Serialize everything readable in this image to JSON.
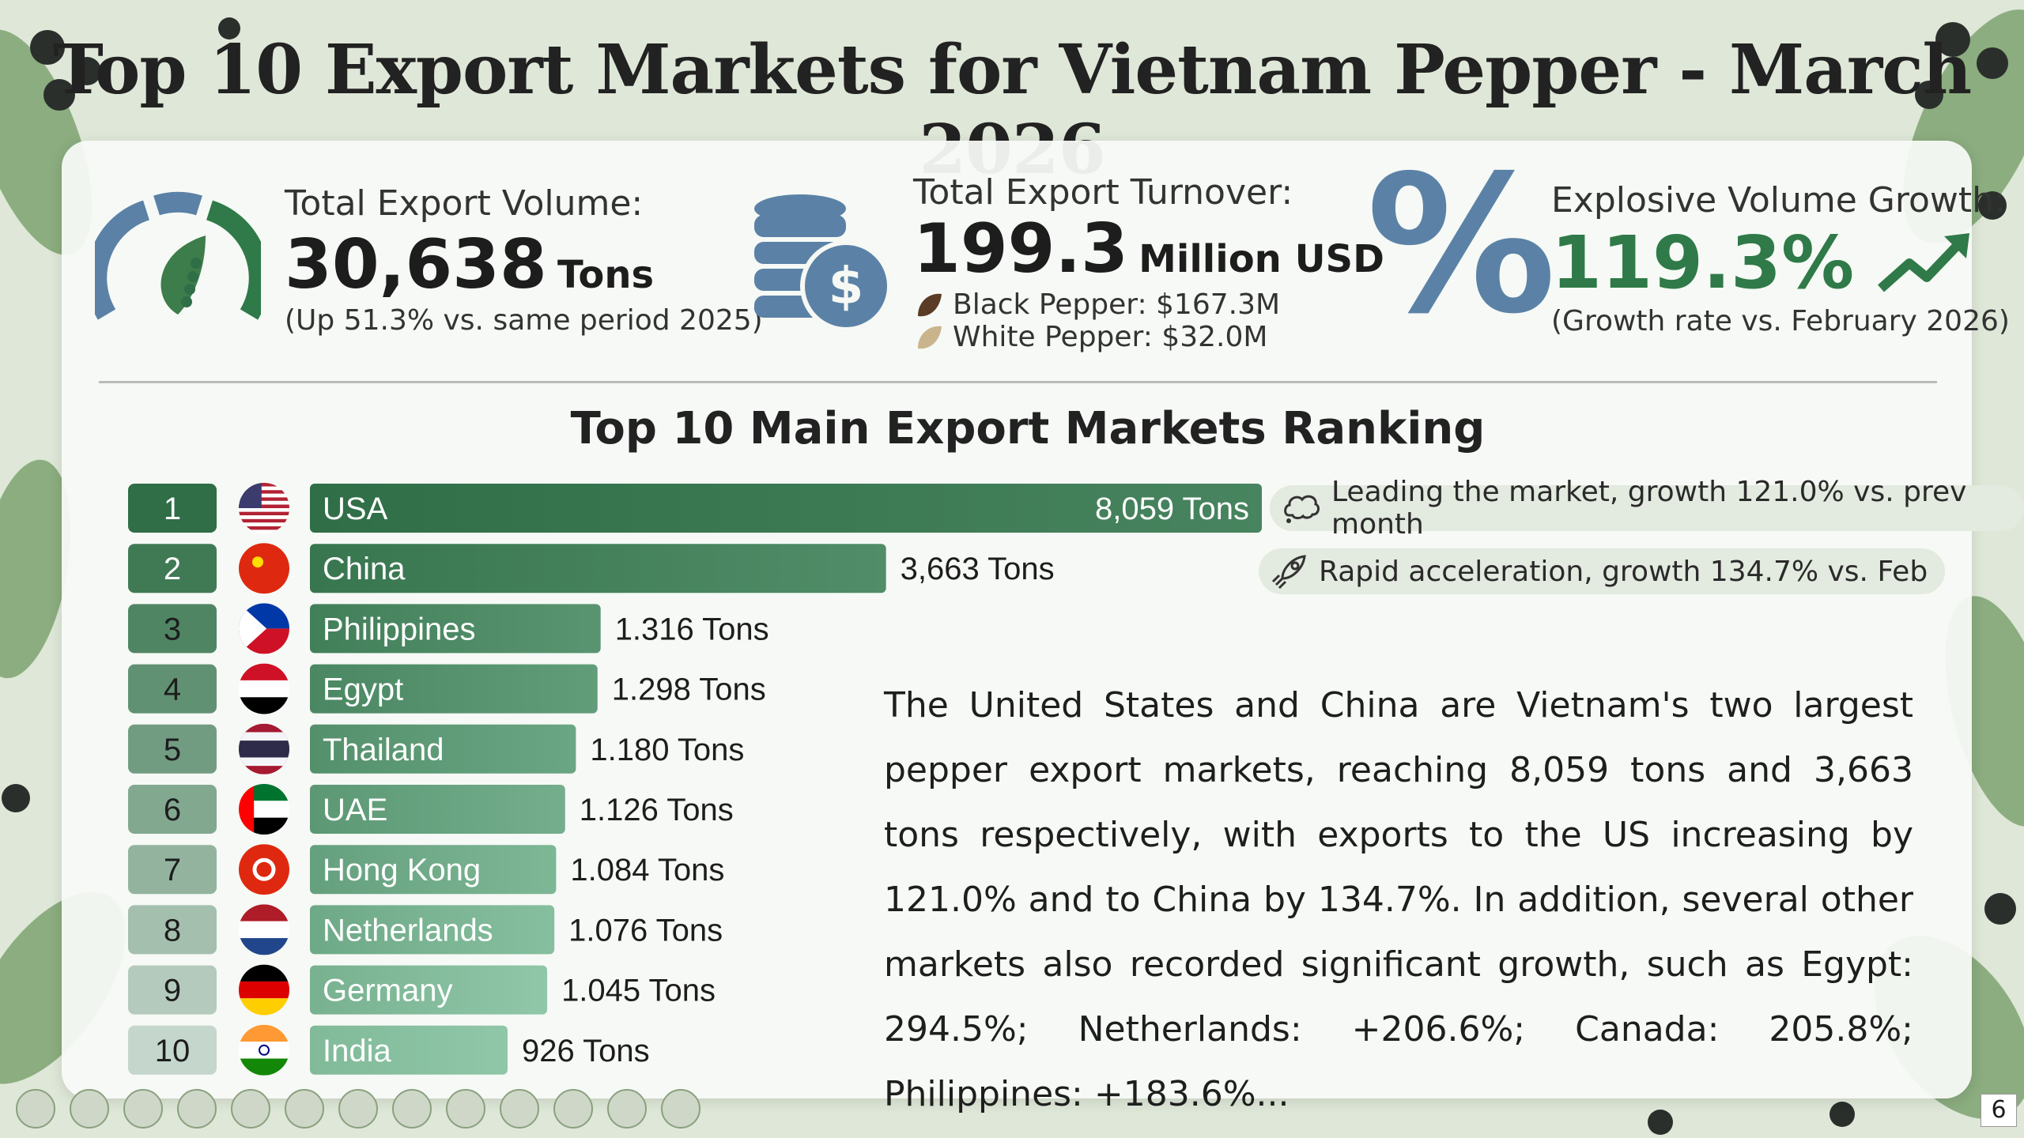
{
  "title": "Top 10 Export Markets for Vietnam Pepper - March 2026",
  "kpis": {
    "volume": {
      "label": "Total Export Volume:",
      "value": "30,638",
      "unit": "Tons",
      "note": "(Up 51.3% vs. same period 2025)"
    },
    "turnover": {
      "label": "Total Export Turnover:",
      "value": "199.3",
      "unit": "Million USD",
      "black_pepper": "Black Pepper: $167.3M",
      "white_pepper": "White Pepper: $32.0M"
    },
    "growth": {
      "label": "Explosive Volume Growth:",
      "value": "119.3%",
      "note": "(Growth rate vs. February 2026)"
    }
  },
  "chart_data": {
    "type": "bar",
    "title": "Top 10 Main Export Markets Ranking",
    "orientation": "horizontal",
    "categories": [
      "USA",
      "China",
      "Philippines",
      "Egypt",
      "Thailand",
      "UAE",
      "Hong Kong",
      "Netherlands",
      "Germany",
      "India"
    ],
    "ranks": [
      "1",
      "2",
      "3",
      "4",
      "5",
      "6",
      "7",
      "8",
      "9",
      "10"
    ],
    "values": [
      8059,
      3663,
      1316,
      1298,
      1180,
      1126,
      1084,
      1076,
      1045,
      926
    ],
    "value_labels": [
      "8,059 Tons",
      "3,663 Tons",
      "1.316 Tons",
      "1.298 Tons",
      "1.180 Tons",
      "1.126 Tons",
      "1.084 Tons",
      "1.076 Tons",
      "1.045 Tons",
      "926 Tons"
    ],
    "flags": [
      "us-flag",
      "china-flag",
      "philippines-flag",
      "egypt-flag",
      "thailand-flag",
      "uae-flag",
      "hongkong-flag",
      "netherlands-flag",
      "germany-flag",
      "india-flag"
    ],
    "annotations": [
      "Leading the market, growth 121.0% vs. prev month",
      "Rapid acceleration, growth 134.7% vs. Feb"
    ]
  },
  "colors": {
    "bar_dark": "#2f6e46",
    "bar_light": "#8fc7a8",
    "rank_dark": "#2f6e46",
    "rank_light": "#c5d6cc",
    "chart_blue": "#5b82a6",
    "growth_green": "#2f7a48"
  },
  "paragraph": "The United States and China are Vietnam's two largest pepper export markets, reaching 8,059 tons and 3,663 tons respectively, with exports to the US increasing by 121.0% and to China by 134.7%. In addition, several other markets also recorded significant growth, such as Egypt: 294.5%; Netherlands: +206.6%; Canada: 205.8%; Philippines: +183.6%...",
  "page_number": "6"
}
